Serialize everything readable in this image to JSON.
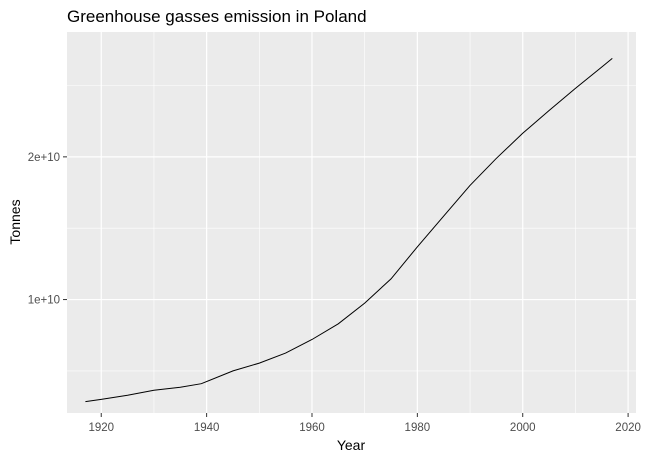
{
  "chart_data": {
    "type": "line",
    "title": "Greenhouse gasses emission in Poland",
    "xlabel": "Year",
    "ylabel": "Tonnes",
    "x_ticks": [
      1920,
      1940,
      1960,
      1980,
      2000,
      2020
    ],
    "x_tick_labels": [
      "1920",
      "1940",
      "1960",
      "1980",
      "2000",
      "2020"
    ],
    "y_ticks": [
      10000000000,
      20000000000
    ],
    "y_tick_labels": [
      "1e+10",
      "2e+10"
    ],
    "xlim": [
      1913.5,
      2021.5
    ],
    "ylim": [
      2050000000,
      28750000000
    ],
    "grid": true,
    "legend": "none",
    "colors": {
      "panel": "#EBEBEB",
      "grid": "#FFFFFF",
      "line": "#000000",
      "text": "#4D4D4D",
      "title": "#000000"
    },
    "series": [
      {
        "x": [
          1917,
          1920,
          1925,
          1930,
          1935,
          1939,
          1945,
          1950,
          1955,
          1960,
          1965,
          1970,
          1975,
          1980,
          1985,
          1990,
          1995,
          2000,
          2005,
          2010,
          2015,
          2017
        ],
        "y": [
          2850000000,
          3000000000,
          3300000000,
          3650000000,
          3850000000,
          4100000000,
          5000000000,
          5550000000,
          6250000000,
          7200000000,
          8300000000,
          9750000000,
          11450000000,
          13700000000,
          15850000000,
          18000000000,
          19900000000,
          21650000000,
          23250000000,
          24800000000,
          26300000000,
          26900000000
        ]
      }
    ]
  }
}
